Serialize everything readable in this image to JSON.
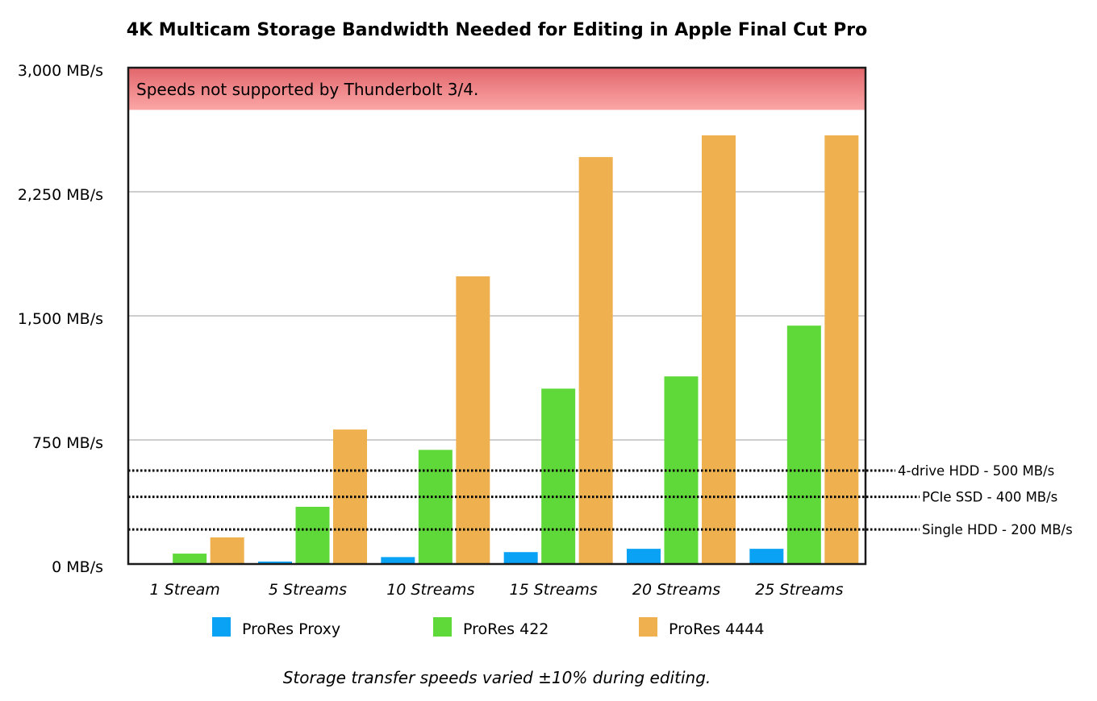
{
  "chart_data": {
    "type": "bar",
    "title": "4K Multicam Storage Bandwidth Needed for Editing in Apple Final Cut Pro",
    "xlabel": "",
    "ylabel": "",
    "ylim": [
      0,
      3000
    ],
    "y_unit_suffix": " MB/s",
    "y_ticks": [
      0,
      750,
      1500,
      2250,
      3000
    ],
    "y_tick_labels": [
      "0 MB/s",
      "750 MB/s",
      "1,500 MB/s",
      "2,250 MB/s",
      "3,000 MB/s"
    ],
    "grid": true,
    "categories": [
      "1 Stream",
      "5 Streams",
      "10 Streams",
      "15 Streams",
      "20 Streams",
      "25 Streams"
    ],
    "series": [
      {
        "name": "ProRes Proxy",
        "color": "#0aa2f5",
        "values": [
          3,
          15,
          42,
          72,
          92,
          92
        ]
      },
      {
        "name": "ProRes 422",
        "color": "#5fd93a",
        "values": [
          63,
          346,
          690,
          1060,
          1134,
          1441
        ]
      },
      {
        "name": "ProRes 4444",
        "color": "#efb14f",
        "values": [
          161,
          813,
          1739,
          2460,
          2591,
          2591
        ]
      }
    ],
    "legend": {
      "placement": "bottom-center",
      "entries": [
        "ProRes Proxy",
        "ProRes 422",
        "ProRes 4444"
      ]
    },
    "shaded_region": {
      "label": "Speeds not supported by Thunderbolt 3/4.",
      "from": 2745,
      "to": 3000,
      "color_top": "#e2666c",
      "color_bottom": "#fba6a6"
    },
    "reference_lines": [
      {
        "label": "4-drive HDD - 500 MB/s",
        "value": 500,
        "plotted_at": 565
      },
      {
        "label": "PCIe SSD - 400 MB/s",
        "value": 400,
        "plotted_at": 406
      },
      {
        "label": "Single HDD - 200 MB/s",
        "value": 200,
        "plotted_at": 209
      }
    ],
    "footnote": "Storage transfer speeds varied ±10% during editing."
  }
}
